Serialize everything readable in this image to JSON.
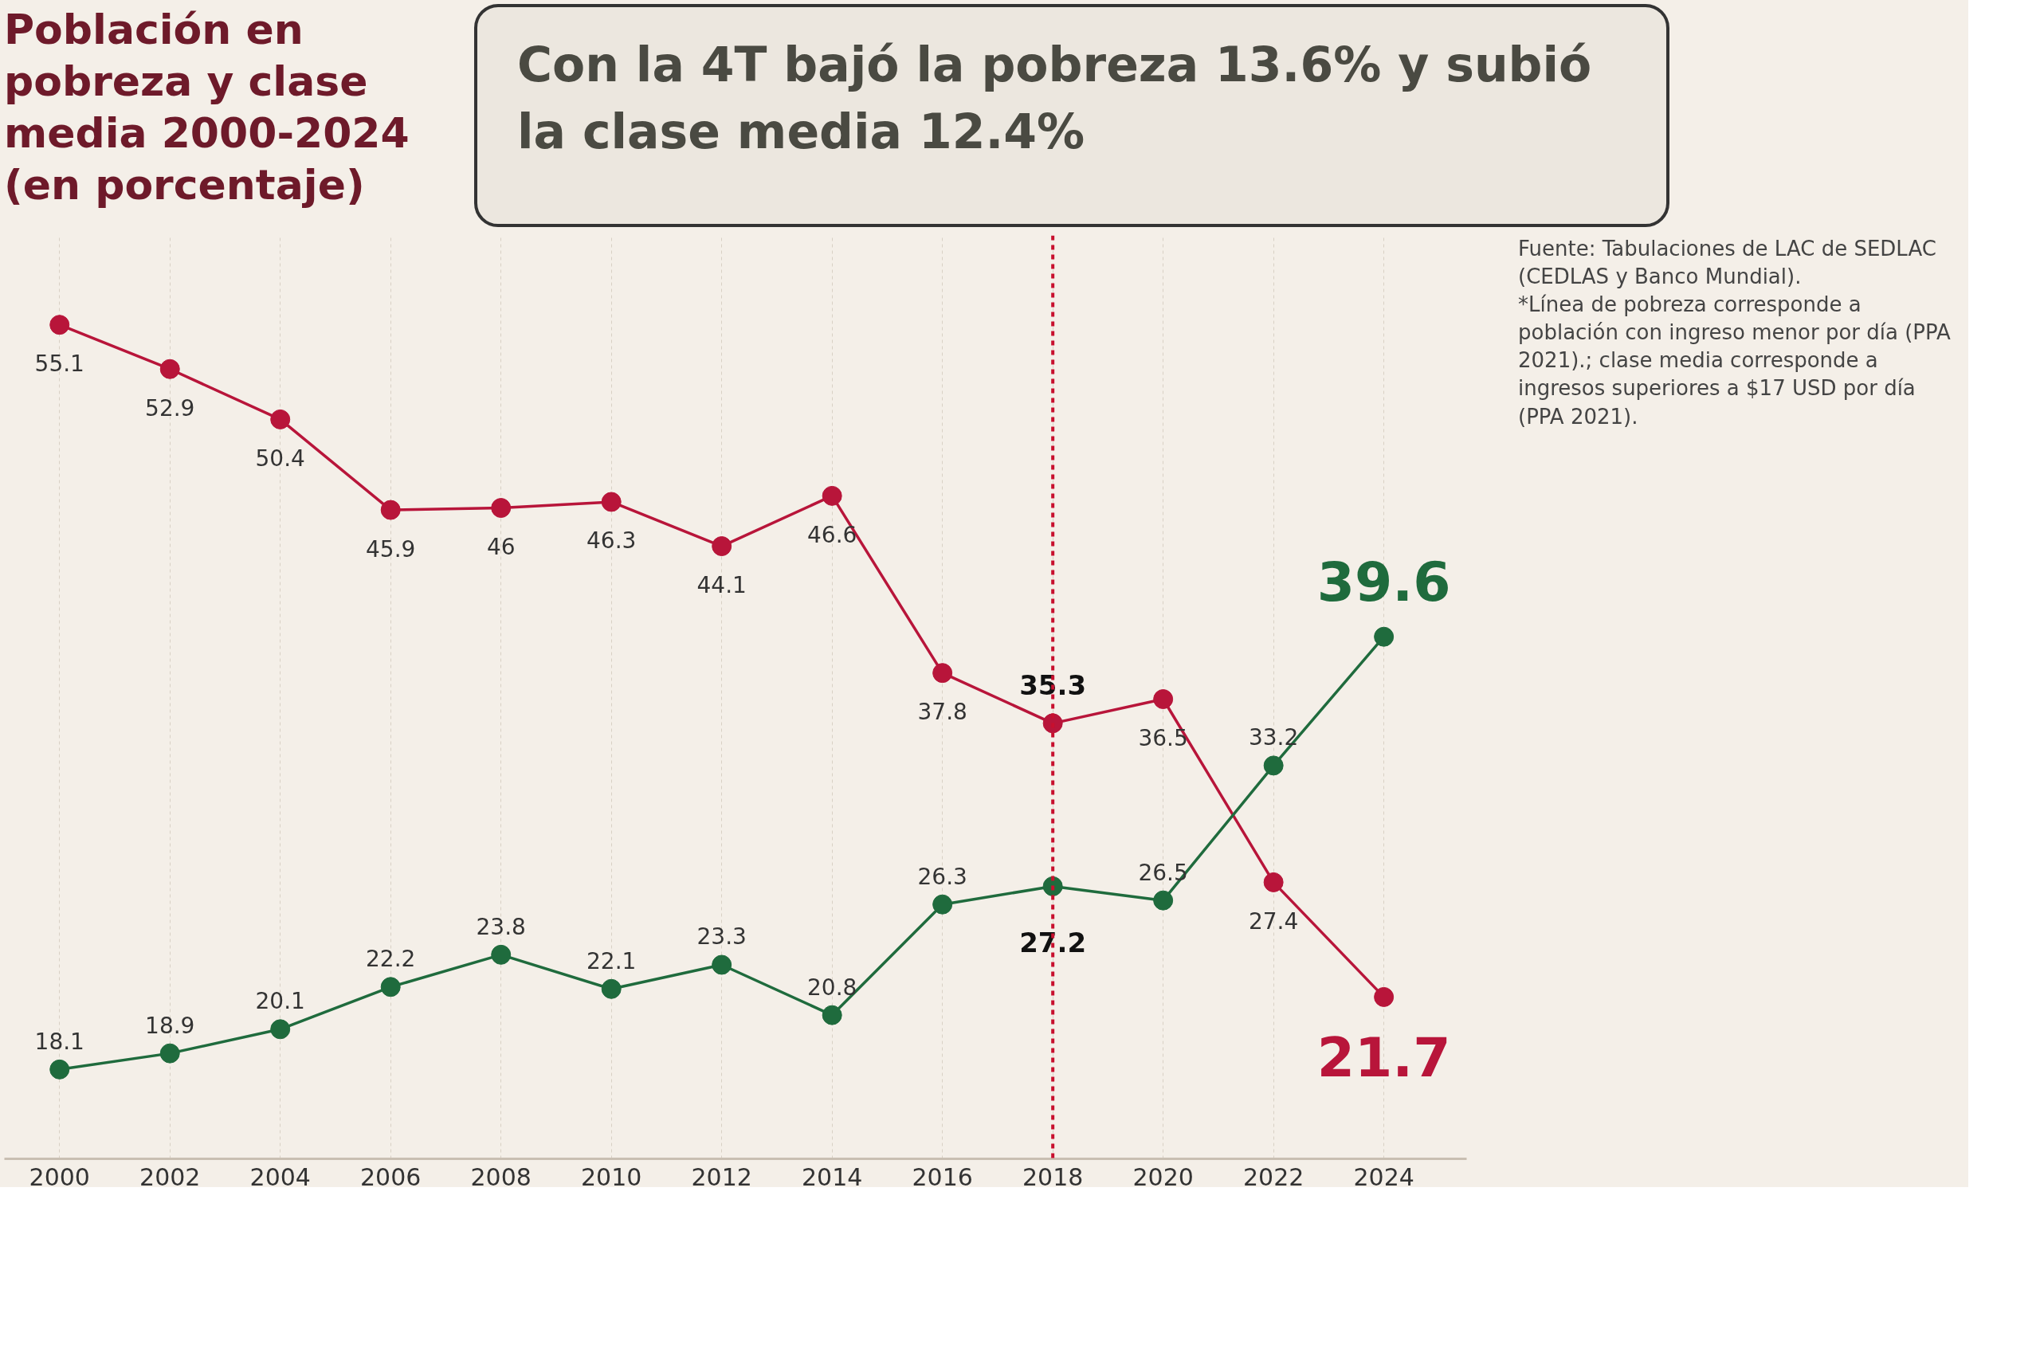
{
  "chart_data": {
    "type": "line",
    "title": "Población en pobreza y clase media 2000-2024 (en porcentaje)",
    "subtitle": "Con la 4T bajó la pobreza 13.6% y subió la clase media 12.4%",
    "x": [
      2000,
      2002,
      2004,
      2006,
      2008,
      2010,
      2012,
      2014,
      2016,
      2018,
      2020,
      2022,
      2024
    ],
    "series": [
      {
        "color": "#b8153a",
        "values": [
          55.1,
          52.9,
          50.4,
          45.9,
          46,
          46.3,
          44.1,
          46.6,
          37.8,
          35.3,
          36.5,
          27.4,
          21.7
        ]
      },
      {
        "color": "#1f6b3d",
        "values": [
          18.1,
          18.9,
          20.1,
          22.2,
          23.8,
          22.1,
          23.3,
          20.8,
          26.3,
          27.2,
          26.5,
          33.2,
          39.6
        ]
      }
    ],
    "xlim": [
      1999,
      2025.5
    ],
    "xticks": [
      2000,
      2002,
      2004,
      2006,
      2008,
      2010,
      2012,
      2014,
      2016,
      2018,
      2020,
      2022,
      2024
    ],
    "tick_labels": "x",
    "grid": "x",
    "marker": "circle",
    "line_style": "solid",
    "data_labels": true,
    "ref_lines": [
      {
        "axis": "x",
        "value": 2018,
        "color": "#c8102e",
        "line_style": "dashed"
      }
    ],
    "annotations": [
      "Fuente: Tabulaciones de LAC de SEDLAC (CEDLAS y Banco Mundial).",
      "*Línea de pobreza corresponde a población con ingreso menor por día (PPA 2021).; clase media corresponde a ingresos superiores a $17 USD por día (PPA 2021)."
    ]
  }
}
